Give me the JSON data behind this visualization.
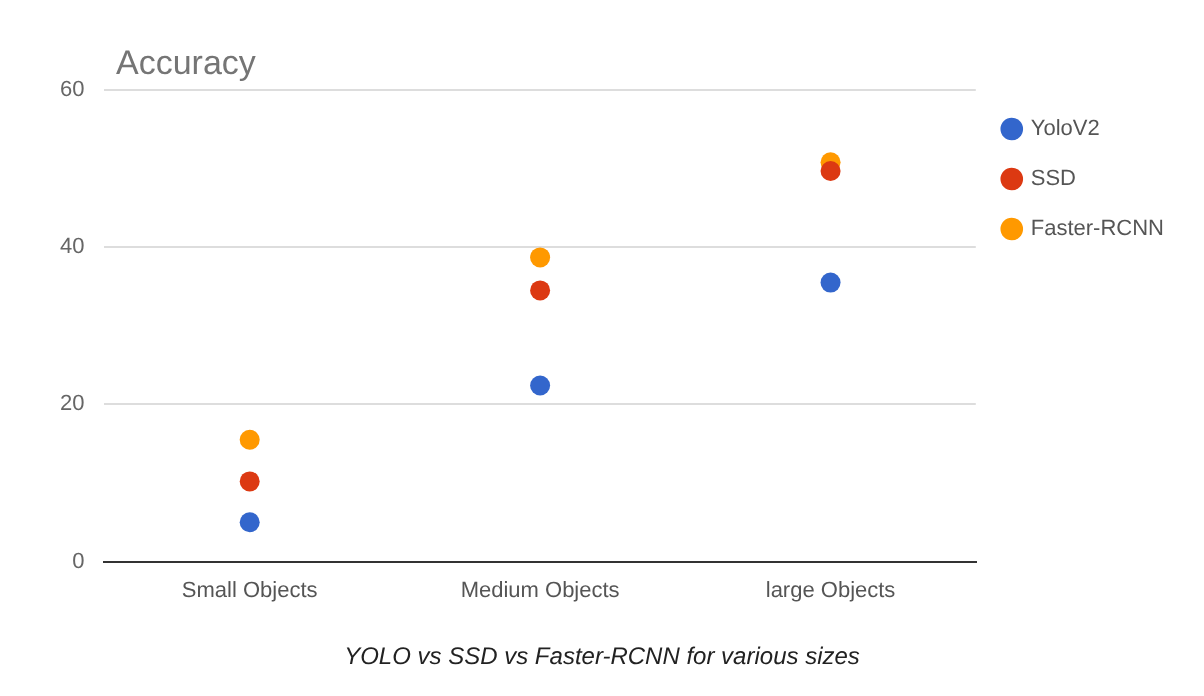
{
  "chart_data": {
    "type": "scatter",
    "title": "Accuracy",
    "categories": [
      "Small Objects",
      "Medium Objects",
      "large Objects"
    ],
    "series": [
      {
        "name": "YoloV2",
        "color": "#3366cc",
        "values": [
          5.0,
          22.4,
          35.5
        ]
      },
      {
        "name": "SSD",
        "color": "#dc3912",
        "values": [
          10.2,
          34.5,
          49.7
        ]
      },
      {
        "name": "Faster-RCNN",
        "color": "#ff9900",
        "values": [
          15.5,
          38.7,
          50.8
        ]
      }
    ],
    "ylim": [
      0,
      60
    ],
    "yticks": [
      0,
      20,
      40,
      60
    ],
    "grid": "y",
    "legend": "right",
    "marker": "circle",
    "annotations": [
      "YOLO vs SSD vs Faster-RCNN for various sizes"
    ]
  }
}
